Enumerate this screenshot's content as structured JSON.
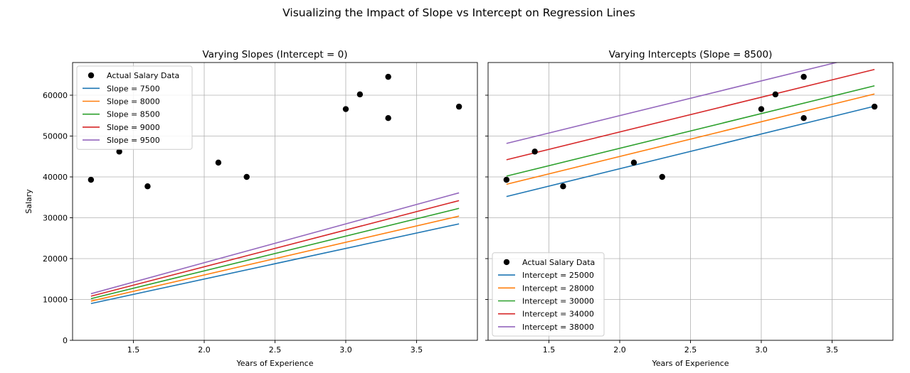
{
  "figure": {
    "suptitle": "Visualizing the Impact of Slope vs Intercept on Regression Lines"
  },
  "chart_data": [
    {
      "type": "scatter+line",
      "title": "Varying Slopes (Intercept = 0)",
      "xlabel": "Years of Experience",
      "ylabel": "Salary",
      "xlim": [
        1.07,
        3.93
      ],
      "ylim": [
        0,
        68000
      ],
      "xticks": [
        1.5,
        2.0,
        2.5,
        3.0,
        3.5
      ],
      "yticks": [
        0,
        10000,
        20000,
        30000,
        40000,
        50000,
        60000
      ],
      "grid": true,
      "legend_position": "upper-left",
      "scatter": {
        "name": "Actual Salary Data",
        "color": "#000000",
        "x": [
          1.2,
          1.4,
          1.6,
          2.1,
          2.3,
          3.0,
          3.1,
          3.3,
          3.3,
          3.8
        ],
        "y": [
          39300,
          46200,
          37700,
          43500,
          40000,
          56600,
          60200,
          54400,
          64500,
          57200
        ]
      },
      "lines": [
        {
          "name": "Slope = 7500",
          "slope": 7500,
          "intercept": 0,
          "color": "#1f77b4"
        },
        {
          "name": "Slope = 8000",
          "slope": 8000,
          "intercept": 0,
          "color": "#ff7f0e"
        },
        {
          "name": "Slope = 8500",
          "slope": 8500,
          "intercept": 0,
          "color": "#2ca02c"
        },
        {
          "name": "Slope = 9000",
          "slope": 9000,
          "intercept": 0,
          "color": "#d62728"
        },
        {
          "name": "Slope = 9500",
          "slope": 9500,
          "intercept": 0,
          "color": "#9467bd"
        }
      ],
      "line_x_range": [
        1.2,
        3.8
      ]
    },
    {
      "type": "scatter+line",
      "title": "Varying Intercepts (Slope = 8500)",
      "xlabel": "Years of Experience",
      "ylabel": "",
      "xlim": [
        1.07,
        3.93
      ],
      "ylim": [
        0,
        68000
      ],
      "xticks": [
        1.5,
        2.0,
        2.5,
        3.0,
        3.5
      ],
      "yticks": [
        0,
        10000,
        20000,
        30000,
        40000,
        50000,
        60000
      ],
      "show_ytick_labels": false,
      "grid": true,
      "legend_position": "lower-left",
      "scatter": {
        "name": "Actual Salary Data",
        "color": "#000000",
        "x": [
          1.2,
          1.4,
          1.6,
          2.1,
          2.3,
          3.0,
          3.1,
          3.3,
          3.3,
          3.8
        ],
        "y": [
          39300,
          46200,
          37700,
          43500,
          40000,
          56600,
          60200,
          54400,
          64500,
          57200
        ]
      },
      "lines": [
        {
          "name": "Intercept = 25000",
          "slope": 8500,
          "intercept": 25000,
          "color": "#1f77b4"
        },
        {
          "name": "Intercept = 28000",
          "slope": 8500,
          "intercept": 28000,
          "color": "#ff7f0e"
        },
        {
          "name": "Intercept = 30000",
          "slope": 8500,
          "intercept": 30000,
          "color": "#2ca02c"
        },
        {
          "name": "Intercept = 34000",
          "slope": 8500,
          "intercept": 34000,
          "color": "#d62728"
        },
        {
          "name": "Intercept = 38000",
          "slope": 8500,
          "intercept": 38000,
          "color": "#9467bd"
        }
      ],
      "line_x_range": [
        1.2,
        3.8
      ]
    }
  ]
}
